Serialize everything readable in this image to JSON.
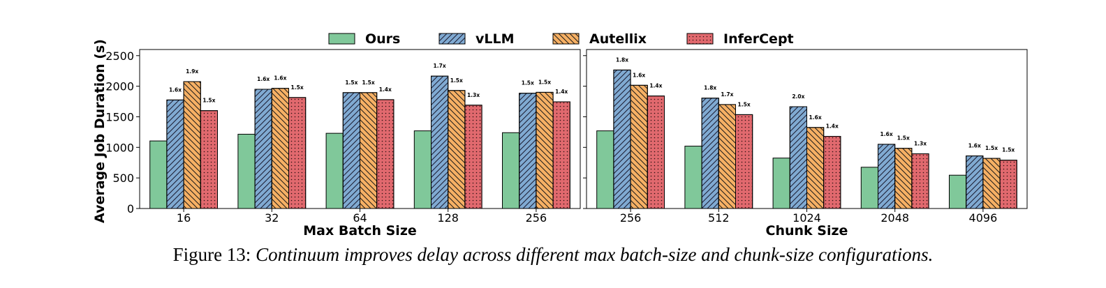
{
  "legend": [
    {
      "name": "Ours",
      "color": "#80c89a",
      "hatch": "none"
    },
    {
      "name": "vLLM",
      "color": "#80aad2",
      "hatch": "diag"
    },
    {
      "name": "Autellix",
      "color": "#f6b064",
      "hatch": "anti"
    },
    {
      "name": "InferCept",
      "color": "#e1696e",
      "hatch": "dots"
    }
  ],
  "caption": {
    "number": "Figure 13:",
    "text": "Continuum improves delay across different max batch-size and chunk-size configurations."
  },
  "chart_data": [
    {
      "type": "bar",
      "xlabel": "Max Batch Size",
      "ylabel": "Average Job Duration (s)",
      "ylim": [
        0,
        2600
      ],
      "yticks": [
        0,
        500,
        1000,
        1500,
        2000,
        2500
      ],
      "categories": [
        "16",
        "32",
        "64",
        "128",
        "256"
      ],
      "series": [
        {
          "name": "Ours",
          "values": [
            1105,
            1215,
            1230,
            1270,
            1240
          ],
          "labels": [
            "",
            "",
            "",
            "",
            ""
          ]
        },
        {
          "name": "vLLM",
          "values": [
            1775,
            1950,
            1895,
            2165,
            1885
          ],
          "labels": [
            "1.6x",
            "1.6x",
            "1.5x",
            "1.7x",
            "1.5x"
          ]
        },
        {
          "name": "Autellix",
          "values": [
            2075,
            1965,
            1895,
            1930,
            1900
          ],
          "labels": [
            "1.9x",
            "1.6x",
            "1.5x",
            "1.5x",
            "1.5x"
          ]
        },
        {
          "name": "InferCept",
          "values": [
            1600,
            1815,
            1780,
            1690,
            1745
          ],
          "labels": [
            "1.5x",
            "1.5x",
            "1.4x",
            "1.3x",
            "1.4x"
          ]
        }
      ]
    },
    {
      "type": "bar",
      "xlabel": "Chunk Size",
      "ylabel": "",
      "ylim": [
        0,
        2600
      ],
      "yticks": [
        0,
        500,
        1000,
        1500,
        2000,
        2500
      ],
      "categories": [
        "256",
        "512",
        "1024",
        "2048",
        "4096"
      ],
      "series": [
        {
          "name": "Ours",
          "values": [
            1270,
            1020,
            825,
            675,
            545
          ],
          "labels": [
            "",
            "",
            "",
            "",
            ""
          ]
        },
        {
          "name": "vLLM",
          "values": [
            2265,
            1805,
            1665,
            1050,
            860
          ],
          "labels": [
            "1.8x",
            "1.8x",
            "2.0x",
            "1.6x",
            "1.6x"
          ]
        },
        {
          "name": "Autellix",
          "values": [
            2015,
            1700,
            1325,
            985,
            820
          ],
          "labels": [
            "1.6x",
            "1.7x",
            "1.6x",
            "1.5x",
            "1.5x"
          ]
        },
        {
          "name": "InferCept",
          "values": [
            1840,
            1535,
            1180,
            895,
            790
          ],
          "labels": [
            "1.4x",
            "1.5x",
            "1.4x",
            "1.3x",
            "1.5x"
          ]
        }
      ]
    }
  ]
}
